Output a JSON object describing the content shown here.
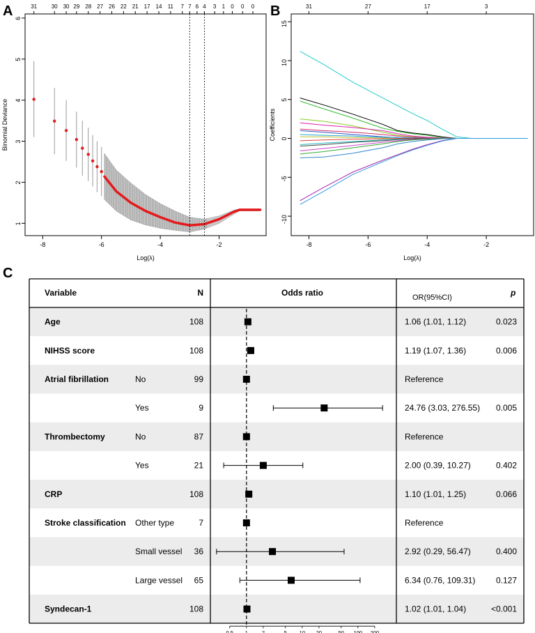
{
  "panel_labels": {
    "a": "A",
    "b": "B",
    "c": "C"
  },
  "colors": {
    "point": "#e41a1c",
    "errorbar": "#999999",
    "shade": "#ececec",
    "border": "#000000"
  },
  "chart_data": [
    {
      "id": "A",
      "type": "scatter",
      "xlabel": "Log(λ)",
      "ylabel": "Binomial Deviance",
      "xlim": [
        -8.6,
        -0.4
      ],
      "ylim": [
        0.7,
        6.1
      ],
      "x_ticks": [
        -8,
        -6,
        -4,
        -2
      ],
      "x_tick_labels": [
        "-8",
        "-6",
        "-4",
        "-2"
      ],
      "y_ticks": [
        1,
        2,
        3,
        4,
        5,
        6
      ],
      "y_tick_labels": [
        "1",
        "2",
        "3",
        "4",
        "5",
        "6"
      ],
      "top_ticks_x": [
        -8.3,
        -7.6,
        -7.2,
        -6.85,
        -6.45,
        -6.05,
        -5.65,
        -5.25,
        -4.85,
        -4.45,
        -4.05,
        -3.65,
        -3.25,
        -3.0,
        -2.75,
        -2.5,
        -2.15,
        -1.85,
        -1.55,
        -1.2,
        -0.85
      ],
      "top_tick_labels": [
        "31",
        "30",
        "30",
        "29",
        "28",
        "27",
        "26",
        "22",
        "21",
        "17",
        "14",
        "11",
        "7",
        "7",
        "6",
        "4",
        "3",
        "1",
        "0",
        "0",
        "0"
      ],
      "vlines": [
        -3.0,
        -2.5
      ],
      "points_x": [
        -8.3,
        -7.6,
        -7.2,
        -6.85,
        -6.65,
        -6.45,
        -6.3,
        -6.15,
        -6.0
      ],
      "points_y": [
        4.02,
        3.49,
        3.26,
        3.04,
        2.83,
        2.68,
        2.52,
        2.38,
        2.26
      ],
      "points_upper": [
        4.95,
        4.3,
        4.0,
        3.72,
        3.5,
        3.33,
        3.15,
        3.0,
        2.86
      ],
      "points_lower": [
        3.1,
        2.68,
        2.52,
        2.36,
        2.16,
        2.03,
        1.9,
        1.76,
        1.66
      ],
      "curve_x": [
        -5.9,
        -5.5,
        -5.0,
        -4.5,
        -4.0,
        -3.5,
        -3.0,
        -2.5,
        -2.0,
        -1.5,
        -1.3,
        -0.6
      ],
      "curve_y": [
        2.14,
        1.78,
        1.5,
        1.3,
        1.15,
        1.02,
        0.95,
        0.98,
        1.1,
        1.28,
        1.33,
        1.33
      ],
      "band_upper": [
        2.7,
        2.3,
        1.98,
        1.7,
        1.48,
        1.3,
        1.15,
        1.1,
        1.18,
        1.32,
        1.35,
        1.35
      ],
      "band_lower": [
        1.58,
        1.3,
        1.08,
        0.96,
        0.88,
        0.83,
        0.79,
        0.86,
        1.0,
        1.22,
        1.3,
        1.3
      ]
    },
    {
      "id": "B",
      "type": "line",
      "xlabel": "Log(λ)",
      "ylabel": "Coefficients",
      "xlim": [
        -8.6,
        -0.4
      ],
      "ylim": [
        -12.5,
        16
      ],
      "x_ticks": [
        -8,
        -6,
        -4,
        -2
      ],
      "x_tick_labels": [
        "-8",
        "-6",
        "-4",
        "-2"
      ],
      "y_ticks": [
        -10,
        -5,
        0,
        5,
        10,
        15
      ],
      "y_tick_labels": [
        "-10",
        "-5",
        "0",
        "5",
        "10",
        "15"
      ],
      "top_ticks_x": [
        -8.0,
        -6.0,
        -4.0,
        -2.0
      ],
      "top_tick_labels": [
        "31",
        "27",
        "17",
        "3"
      ],
      "x": [
        -8.3,
        -7.5,
        -6.5,
        -5.5,
        -5.0,
        -4.5,
        -4.0,
        -3.5,
        -3.0,
        -2.5,
        -2.0,
        -0.6
      ],
      "series": [
        {
          "color": "#22cccc",
          "values": [
            11.2,
            9.5,
            7.2,
            5.2,
            4.2,
            3.2,
            2.3,
            1.2,
            0.2,
            0,
            0,
            0
          ]
        },
        {
          "color": "#000000",
          "values": [
            5.2,
            4.3,
            3.1,
            1.8,
            1.0,
            0.7,
            0.5,
            0.2,
            0,
            0,
            0,
            0
          ]
        },
        {
          "color": "#33bb33",
          "values": [
            4.8,
            3.8,
            2.6,
            1.3,
            0.9,
            0.6,
            0.4,
            0.1,
            0,
            0,
            0,
            0
          ]
        },
        {
          "color": "#88cc22",
          "values": [
            2.5,
            2.2,
            1.6,
            0.8,
            0.4,
            0.2,
            0.1,
            0,
            0,
            0,
            0,
            0
          ]
        },
        {
          "color": "#dd22aa",
          "values": [
            2.0,
            1.7,
            1.4,
            1.0,
            0.6,
            0.3,
            0.15,
            0.05,
            0,
            0,
            0,
            0
          ]
        },
        {
          "color": "#cc3366",
          "values": [
            1.2,
            1.0,
            0.8,
            0.5,
            0.3,
            0.15,
            0.05,
            0,
            0,
            0,
            0,
            0
          ]
        },
        {
          "color": "#3355cc",
          "values": [
            1.0,
            0.8,
            0.5,
            0.2,
            0.1,
            0.05,
            0,
            0,
            0,
            0,
            0,
            0
          ]
        },
        {
          "color": "#22aacc",
          "values": [
            0.5,
            0.4,
            0.3,
            0.15,
            0.1,
            0.05,
            0,
            0,
            0,
            0,
            0,
            0
          ]
        },
        {
          "color": "#bbbb33",
          "values": [
            0.2,
            0.2,
            0.1,
            0.05,
            0,
            0,
            0,
            0,
            0,
            0,
            0,
            0
          ]
        },
        {
          "color": "#dd4444",
          "values": [
            -0.3,
            -0.2,
            -0.1,
            -0.05,
            0,
            0,
            0,
            0,
            0,
            0,
            0,
            0
          ]
        },
        {
          "color": "#22bbbb",
          "values": [
            -0.8,
            -0.6,
            -0.4,
            -0.2,
            -0.1,
            -0.05,
            0,
            0,
            0,
            0,
            0,
            0
          ]
        },
        {
          "color": "#444444",
          "values": [
            -1.0,
            -0.8,
            -0.5,
            -0.3,
            -0.15,
            -0.05,
            0,
            0,
            0,
            0,
            0,
            0
          ]
        },
        {
          "color": "#cc44cc",
          "values": [
            -1.6,
            -1.3,
            -0.9,
            -0.5,
            -0.3,
            -0.15,
            -0.05,
            0,
            0,
            0,
            0,
            0
          ]
        },
        {
          "color": "#33aa33",
          "values": [
            -2.0,
            -1.7,
            -1.2,
            -0.7,
            -0.4,
            -0.2,
            -0.1,
            0,
            0,
            0,
            0,
            0
          ]
        },
        {
          "color": "#3388cc",
          "values": [
            -2.5,
            -2.4,
            -1.9,
            -1.2,
            -0.7,
            -0.4,
            -0.2,
            -0.05,
            0,
            0,
            0,
            0
          ]
        },
        {
          "color": "#aa22aa",
          "values": [
            -8.0,
            -6.3,
            -4.3,
            -2.8,
            -2.1,
            -1.4,
            -0.8,
            -0.3,
            0,
            0,
            0,
            0
          ]
        },
        {
          "color": "#3399dd",
          "values": [
            -8.5,
            -6.8,
            -4.6,
            -3.0,
            -2.2,
            -1.5,
            -0.9,
            -0.35,
            0,
            0,
            0,
            0
          ]
        }
      ]
    },
    {
      "id": "C",
      "type": "forest",
      "headers": {
        "variable": "Variable",
        "n": "N",
        "odds_ratio": "Odds ratio",
        "or_ci": "OR(95%CI)",
        "p": "p"
      },
      "x_scale": "log",
      "ref_line": 1,
      "xlim": [
        0.3,
        400
      ],
      "x_ticks": [
        0.5,
        1,
        2,
        5,
        10,
        20,
        50,
        100,
        200
      ],
      "x_tick_labels": [
        "0.5",
        "1",
        "2",
        "5",
        "10",
        "20",
        "50",
        "100",
        "200"
      ],
      "rows": [
        {
          "variable": "Age",
          "level": "",
          "n": "108",
          "or": 1.06,
          "lo": 1.01,
          "hi": 1.12,
          "ci_text": "1.06 (1.01, 1.12)",
          "p": "0.023",
          "shaded": true
        },
        {
          "variable": "NIHSS score",
          "level": "",
          "n": "108",
          "or": 1.19,
          "lo": 1.07,
          "hi": 1.36,
          "ci_text": "1.19 (1.07, 1.36)",
          "p": "0.006",
          "shaded": false
        },
        {
          "variable": "Atrial fibrillation",
          "level": "No",
          "n": "99",
          "or": 1,
          "lo": 1,
          "hi": 1,
          "ci_text": "Reference",
          "p": "",
          "shaded": true
        },
        {
          "variable": "",
          "level": "Yes",
          "n": "9",
          "or": 24.76,
          "lo": 3.03,
          "hi": 276.55,
          "ci_text": "24.76 (3.03, 276.55)",
          "p": "0.005",
          "shaded": false
        },
        {
          "variable": "Thrombectomy",
          "level": "No",
          "n": "87",
          "or": 1,
          "lo": 1,
          "hi": 1,
          "ci_text": "Reference",
          "p": "",
          "shaded": true
        },
        {
          "variable": "",
          "level": "Yes",
          "n": "21",
          "or": 2.0,
          "lo": 0.39,
          "hi": 10.27,
          "ci_text": "2.00 (0.39, 10.27)",
          "p": "0.402",
          "shaded": false
        },
        {
          "variable": "CRP",
          "level": "",
          "n": "108",
          "or": 1.1,
          "lo": 1.01,
          "hi": 1.25,
          "ci_text": "1.10 (1.01, 1.25)",
          "p": "0.066",
          "shaded": true
        },
        {
          "variable": "Stroke classification",
          "level": "Other type",
          "n": "7",
          "or": 1,
          "lo": 1,
          "hi": 1,
          "ci_text": "Reference",
          "p": "",
          "shaded": false
        },
        {
          "variable": "",
          "level": "Small vessel",
          "n": "36",
          "or": 2.92,
          "lo": 0.29,
          "hi": 56.47,
          "ci_text": "2.92 (0.29, 56.47)",
          "p": "0.400",
          "shaded": true
        },
        {
          "variable": "",
          "level": "Large vessel",
          "n": "65",
          "or": 6.34,
          "lo": 0.76,
          "hi": 109.31,
          "ci_text": "6.34 (0.76, 109.31)",
          "p": "0.127",
          "shaded": false
        },
        {
          "variable": "Syndecan-1",
          "level": "",
          "n": "108",
          "or": 1.02,
          "lo": 1.01,
          "hi": 1.04,
          "ci_text": "1.02 (1.01, 1.04)",
          "p": "<0.001",
          "shaded": true
        }
      ]
    }
  ]
}
